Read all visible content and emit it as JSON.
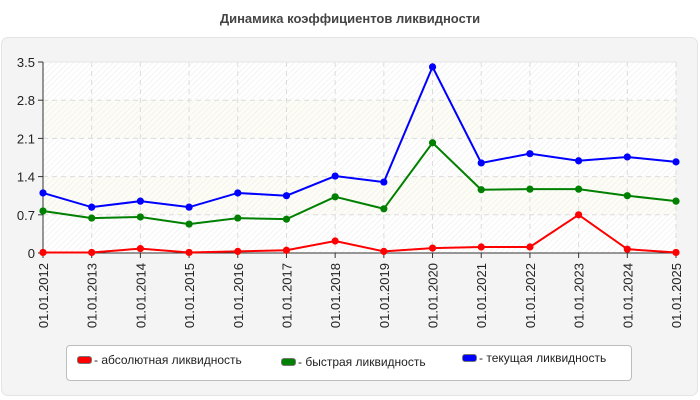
{
  "title": "Динамика коэффициентов ликвидности",
  "legend": [
    {
      "label": "- абсолютная ликвидность",
      "color": "#ff0000"
    },
    {
      "label": "- быстрая ликвидность",
      "color": "#008000"
    },
    {
      "label": "- текущая ликвидность",
      "color": "#0000ff"
    }
  ],
  "chart_data": {
    "type": "line",
    "title": "Динамика коэффициентов ликвидности",
    "xlabel": "",
    "ylabel": "",
    "ylim": [
      0,
      3.5
    ],
    "yticks": [
      0,
      0.7,
      1.4,
      2.1,
      2.8,
      3.5
    ],
    "ytick_labels": [
      "0",
      "0.7",
      "1.4",
      "2.1",
      "2.8",
      "3.5"
    ],
    "grid": true,
    "legend_position": "bottom",
    "categories": [
      "01.01.2012",
      "01.01.2013",
      "01.01.2014",
      "01.01.2015",
      "01.01.2016",
      "01.01.2017",
      "01.01.2018",
      "01.01.2019",
      "01.01.2020",
      "01.01.2021",
      "01.01.2022",
      "01.01.2023",
      "01.01.2024",
      "01.01.2025"
    ],
    "series": [
      {
        "name": "абсолютная ликвидность",
        "color": "#ff0000",
        "values": [
          0.01,
          0.01,
          0.08,
          0.01,
          0.03,
          0.05,
          0.22,
          0.03,
          0.09,
          0.11,
          0.11,
          0.7,
          0.07,
          0.01
        ]
      },
      {
        "name": "быстрая ликвидность",
        "color": "#008000",
        "values": [
          0.77,
          0.64,
          0.66,
          0.53,
          0.64,
          0.62,
          1.03,
          0.81,
          2.02,
          1.16,
          1.17,
          1.17,
          1.05,
          0.95
        ]
      },
      {
        "name": "текущая ликвидность",
        "color": "#0000ff",
        "values": [
          1.1,
          0.84,
          0.95,
          0.84,
          1.1,
          1.05,
          1.41,
          1.3,
          3.41,
          1.65,
          1.82,
          1.69,
          1.76,
          1.67
        ]
      }
    ]
  }
}
